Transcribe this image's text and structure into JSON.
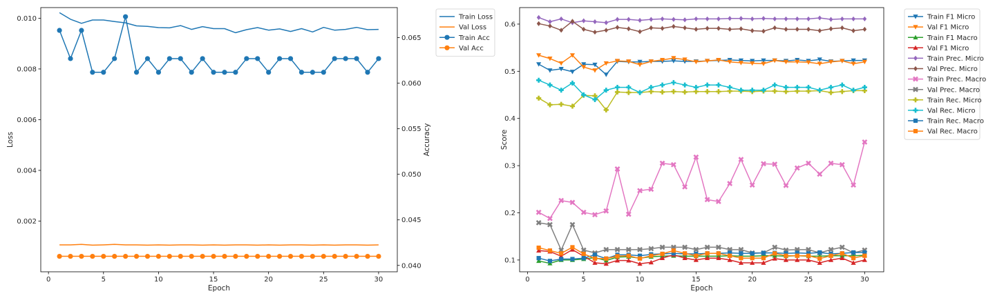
{
  "chart_data": [
    {
      "type": "line",
      "xlabel": "Epoch",
      "ylabel": "Loss",
      "y2label": "Accuracy",
      "grid": false,
      "legend_position": "outside-top-right",
      "xlim": [
        -0.7,
        31.7
      ],
      "ylim": [
        0.0,
        0.01042
      ],
      "y2lim": [
        0.0393,
        0.0683
      ],
      "xticks": [
        0,
        5,
        10,
        15,
        20,
        25,
        30
      ],
      "yticks": [
        0.002,
        0.004,
        0.006,
        0.008,
        0.01
      ],
      "ytick_labels": [
        "0.002",
        "0.004",
        "0.006",
        "0.008",
        "0.010"
      ],
      "y2ticks": [
        0.04,
        0.045,
        0.05,
        0.055,
        0.06,
        0.065
      ],
      "y2tick_labels": [
        "0.040",
        "0.045",
        "0.050",
        "0.055",
        "0.060",
        "0.065"
      ],
      "x": [
        1,
        2,
        3,
        4,
        5,
        6,
        7,
        8,
        9,
        10,
        11,
        12,
        13,
        14,
        15,
        16,
        17,
        18,
        19,
        20,
        21,
        22,
        23,
        24,
        25,
        26,
        27,
        28,
        29,
        30
      ],
      "series": [
        {
          "name": "Train Loss",
          "axis": "left",
          "color": "#1f77b4",
          "marker": "none",
          "values": [
            0.01022,
            0.00996,
            0.0098,
            0.00993,
            0.00993,
            0.00987,
            0.00982,
            0.0097,
            0.00968,
            0.00963,
            0.00962,
            0.00971,
            0.00956,
            0.00967,
            0.00959,
            0.00959,
            0.00943,
            0.00955,
            0.00963,
            0.00953,
            0.00958,
            0.00948,
            0.00959,
            0.00946,
            0.00964,
            0.00953,
            0.00956,
            0.00964,
            0.00955,
            0.00956
          ]
        },
        {
          "name": "Val Loss",
          "axis": "left",
          "color": "#ff7f0e",
          "marker": "none",
          "values": [
            0.00106,
            0.00106,
            0.00108,
            0.00105,
            0.00106,
            0.00108,
            0.00106,
            0.00106,
            0.00105,
            0.00106,
            0.00105,
            0.00106,
            0.00106,
            0.00105,
            0.00106,
            0.00105,
            0.00106,
            0.00106,
            0.00105,
            0.00106,
            0.00105,
            0.00106,
            0.00106,
            0.00105,
            0.00106,
            0.00105,
            0.00106,
            0.00106,
            0.00105,
            0.00106
          ]
        },
        {
          "name": "Train Acc",
          "axis": "right",
          "color": "#1f77b4",
          "marker": "circle",
          "values": [
            0.0658,
            0.0627,
            0.0658,
            0.0612,
            0.0612,
            0.0627,
            0.0673,
            0.0612,
            0.0627,
            0.0612,
            0.0627,
            0.0627,
            0.0612,
            0.0627,
            0.0612,
            0.0612,
            0.0612,
            0.0627,
            0.0627,
            0.0612,
            0.0627,
            0.0627,
            0.0612,
            0.0612,
            0.0612,
            0.0627,
            0.0627,
            0.0627,
            0.0612,
            0.0627
          ]
        },
        {
          "name": "Val Acc",
          "axis": "right",
          "color": "#ff7f0e",
          "marker": "circle",
          "values": [
            0.041,
            0.041,
            0.041,
            0.041,
            0.041,
            0.041,
            0.041,
            0.041,
            0.041,
            0.041,
            0.041,
            0.041,
            0.041,
            0.041,
            0.041,
            0.041,
            0.041,
            0.041,
            0.041,
            0.041,
            0.041,
            0.041,
            0.041,
            0.041,
            0.041,
            0.041,
            0.041,
            0.041,
            0.041,
            0.041
          ]
        }
      ]
    },
    {
      "type": "line",
      "xlabel": "Epoch",
      "ylabel": "Score",
      "grid": false,
      "legend_position": "outside-top-right",
      "xlim": [
        -0.7,
        31.7
      ],
      "ylim": [
        0.075,
        0.635
      ],
      "xticks": [
        0,
        5,
        10,
        15,
        20,
        25,
        30
      ],
      "yticks": [
        0.1,
        0.2,
        0.3,
        0.4,
        0.5,
        0.6
      ],
      "ytick_labels": [
        "0.1",
        "0.2",
        "0.3",
        "0.4",
        "0.5",
        "0.6"
      ],
      "x": [
        1,
        2,
        3,
        4,
        5,
        6,
        7,
        8,
        9,
        10,
        11,
        12,
        13,
        14,
        15,
        16,
        17,
        18,
        19,
        20,
        21,
        22,
        23,
        24,
        25,
        26,
        27,
        28,
        29,
        30
      ],
      "series": [
        {
          "name": "Train F1 Micro",
          "color": "#1f77b4",
          "marker": "triangle-down",
          "values": [
            0.515,
            0.502,
            0.505,
            0.499,
            0.515,
            0.514,
            0.493,
            0.521,
            0.52,
            0.52,
            0.521,
            0.521,
            0.522,
            0.521,
            0.521,
            0.522,
            0.523,
            0.524,
            0.523,
            0.522,
            0.523,
            0.523,
            0.522,
            0.524,
            0.522,
            0.525,
            0.521,
            0.522,
            0.523,
            0.523
          ]
        },
        {
          "name": "Val F1 Micro",
          "color": "#ff7f0e",
          "marker": "triangle-down",
          "values": [
            0.534,
            0.527,
            0.517,
            0.534,
            0.509,
            0.502,
            0.517,
            0.522,
            0.521,
            0.514,
            0.521,
            0.524,
            0.528,
            0.525,
            0.52,
            0.522,
            0.524,
            0.52,
            0.518,
            0.517,
            0.516,
            0.523,
            0.52,
            0.52,
            0.519,
            0.516,
            0.52,
            0.522,
            0.516,
            0.52
          ]
        },
        {
          "name": "Train F1 Macro",
          "color": "#2ca02c",
          "marker": "triangle-up",
          "values": [
            0.098,
            0.093,
            0.1,
            0.1,
            0.102,
            0.105,
            0.099,
            0.106,
            0.107,
            0.104,
            0.107,
            0.108,
            0.109,
            0.108,
            0.108,
            0.108,
            0.108,
            0.109,
            0.108,
            0.108,
            0.109,
            0.109,
            0.108,
            0.109,
            0.108,
            0.108,
            0.109,
            0.109,
            0.109,
            0.11
          ]
        },
        {
          "name": "Val F1 Micro",
          "color": "#d62728",
          "marker": "triangle-up",
          "values": [
            0.12,
            0.118,
            0.108,
            0.122,
            0.108,
            0.094,
            0.092,
            0.099,
            0.099,
            0.092,
            0.095,
            0.104,
            0.111,
            0.104,
            0.1,
            0.104,
            0.104,
            0.1,
            0.094,
            0.094,
            0.094,
            0.103,
            0.1,
            0.1,
            0.1,
            0.094,
            0.1,
            0.104,
            0.094,
            0.1
          ]
        },
        {
          "name": "Train Prec. Micro",
          "color": "#9467bd",
          "marker": "diamond",
          "values": [
            0.614,
            0.605,
            0.611,
            0.603,
            0.607,
            0.605,
            0.603,
            0.61,
            0.61,
            0.608,
            0.61,
            0.611,
            0.61,
            0.609,
            0.611,
            0.611,
            0.611,
            0.612,
            0.612,
            0.611,
            0.612,
            0.611,
            0.611,
            0.611,
            0.611,
            0.613,
            0.61,
            0.611,
            0.611,
            0.611
          ]
        },
        {
          "name": "Val Prec. Micro",
          "color": "#8c564b",
          "marker": "diamond",
          "values": [
            0.601,
            0.596,
            0.587,
            0.606,
            0.589,
            0.583,
            0.587,
            0.593,
            0.59,
            0.584,
            0.592,
            0.591,
            0.595,
            0.592,
            0.589,
            0.591,
            0.591,
            0.589,
            0.59,
            0.586,
            0.585,
            0.592,
            0.589,
            0.589,
            0.589,
            0.586,
            0.59,
            0.592,
            0.586,
            0.589
          ]
        },
        {
          "name": "Train Prec. Macro",
          "color": "#e377c2",
          "marker": "x",
          "values": [
            0.201,
            0.188,
            0.226,
            0.222,
            0.201,
            0.196,
            0.204,
            0.293,
            0.197,
            0.247,
            0.25,
            0.305,
            0.302,
            0.255,
            0.318,
            0.228,
            0.224,
            0.262,
            0.313,
            0.259,
            0.304,
            0.303,
            0.258,
            0.295,
            0.305,
            0.282,
            0.305,
            0.302,
            0.259,
            0.35
          ]
        },
        {
          "name": "Val Prec. Macro",
          "color": "#7f7f7f",
          "marker": "x",
          "values": [
            0.179,
            0.175,
            0.121,
            0.175,
            0.121,
            0.115,
            0.122,
            0.122,
            0.122,
            0.122,
            0.124,
            0.127,
            0.127,
            0.127,
            0.122,
            0.127,
            0.127,
            0.122,
            0.122,
            0.115,
            0.115,
            0.127,
            0.121,
            0.122,
            0.122,
            0.115,
            0.122,
            0.127,
            0.115,
            0.121
          ]
        },
        {
          "name": "Train Rec. Micro",
          "color": "#bcbd22",
          "marker": "plus",
          "values": [
            0.443,
            0.429,
            0.43,
            0.426,
            0.449,
            0.448,
            0.418,
            0.456,
            0.455,
            0.455,
            0.457,
            0.456,
            0.457,
            0.456,
            0.457,
            0.457,
            0.457,
            0.458,
            0.458,
            0.457,
            0.458,
            0.458,
            0.457,
            0.458,
            0.458,
            0.459,
            0.455,
            0.457,
            0.459,
            0.459
          ]
        },
        {
          "name": "Val Rec. Micro",
          "color": "#17becf",
          "marker": "plus",
          "values": [
            0.481,
            0.471,
            0.46,
            0.475,
            0.45,
            0.44,
            0.46,
            0.466,
            0.466,
            0.455,
            0.466,
            0.471,
            0.476,
            0.471,
            0.466,
            0.471,
            0.471,
            0.466,
            0.46,
            0.46,
            0.46,
            0.471,
            0.466,
            0.466,
            0.466,
            0.46,
            0.466,
            0.471,
            0.46,
            0.466
          ]
        },
        {
          "name": "Train Rec. Macro",
          "color": "#1f77b4",
          "marker": "square",
          "values": [
            0.104,
            0.098,
            0.102,
            0.102,
            0.104,
            0.111,
            0.103,
            0.111,
            0.111,
            0.109,
            0.112,
            0.113,
            0.114,
            0.113,
            0.113,
            0.114,
            0.114,
            0.115,
            0.114,
            0.114,
            0.115,
            0.115,
            0.114,
            0.115,
            0.114,
            0.116,
            0.113,
            0.114,
            0.116,
            0.116
          ]
        },
        {
          "name": "Val Rec. Macro",
          "color": "#ff7f0e",
          "marker": "square",
          "values": [
            0.126,
            0.12,
            0.114,
            0.127,
            0.113,
            0.103,
            0.103,
            0.108,
            0.109,
            0.103,
            0.109,
            0.113,
            0.12,
            0.114,
            0.109,
            0.114,
            0.114,
            0.109,
            0.104,
            0.104,
            0.104,
            0.114,
            0.109,
            0.109,
            0.109,
            0.103,
            0.109,
            0.114,
            0.104,
            0.109
          ]
        }
      ]
    }
  ]
}
